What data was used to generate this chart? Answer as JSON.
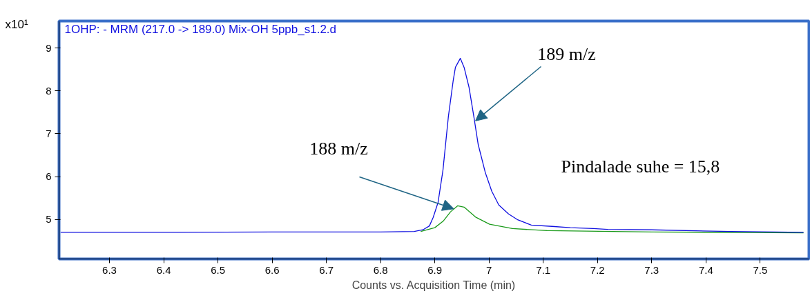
{
  "chart_data": {
    "type": "line",
    "title": "1OHP: - MRM (217.0 -> 189.0) Mix-OH 5ppb_s1.2.d",
    "xlabel": "Counts vs. Acquisition Time (min)",
    "ylabel": "x10¹",
    "x": [
      6.21,
      6.4,
      6.6,
      6.8,
      6.862,
      6.878,
      6.89,
      6.897,
      6.906,
      6.915,
      6.925,
      6.934,
      6.938,
      6.947,
      6.954,
      6.963,
      6.972,
      6.98,
      6.993,
      7.005,
      7.018,
      7.036,
      7.052,
      7.078,
      7.116,
      7.15,
      7.192,
      7.219,
      7.3,
      7.446,
      7.58
    ],
    "series": [
      {
        "name": null,
        "color": "#1010e0",
        "values": [
          4.7,
          4.7,
          4.71,
          4.71,
          4.72,
          4.76,
          4.85,
          5.05,
          5.4,
          6.15,
          7.4,
          8.25,
          8.55,
          8.76,
          8.55,
          8.09,
          7.4,
          6.75,
          6.1,
          5.66,
          5.34,
          5.13,
          5.0,
          4.87,
          4.84,
          4.81,
          4.79,
          4.77,
          4.76,
          4.72,
          4.7
        ]
      },
      {
        "name": null,
        "color": "#1a9a1a",
        "x": [
          6.874,
          6.9,
          6.916,
          6.929,
          6.942,
          6.954,
          6.976,
          7.001,
          7.043,
          7.107,
          7.3,
          7.58
        ],
        "values": [
          4.72,
          4.81,
          4.97,
          5.18,
          5.32,
          5.29,
          5.05,
          4.89,
          4.79,
          4.74,
          4.71,
          4.69
        ]
      }
    ],
    "annotations": [
      {
        "text": "189 m/z",
        "x": 6.975,
        "y": 7.3
      },
      {
        "text": "188 m/z",
        "x": 6.935,
        "y": 5.25
      },
      "Pindalade suhe = 15,8"
    ],
    "xlim": [
      6.207,
      7.59
    ],
    "ylim": [
      4.08,
      9.63
    ],
    "xticks": [
      6.3,
      6.4,
      6.5,
      6.6,
      6.7,
      6.8,
      6.9,
      7,
      7.1,
      7.2,
      7.3,
      7.4,
      7.5
    ],
    "yticks": [
      5,
      6,
      7,
      8,
      9
    ],
    "grid": false,
    "marker": "none",
    "line_style": "solid"
  }
}
